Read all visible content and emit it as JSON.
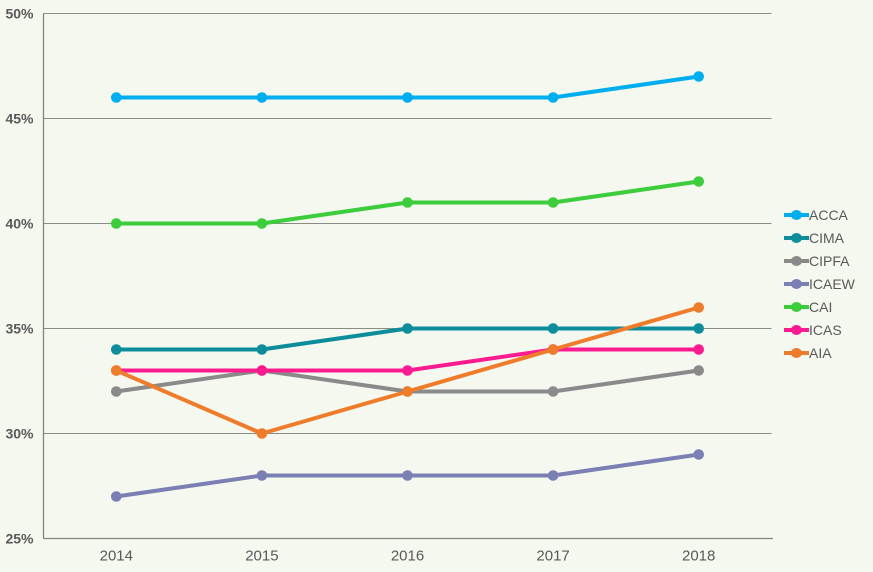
{
  "colors": {
    "background": "#f5f8ef",
    "gridline": "#8a8d84",
    "axis": "#82857c",
    "tick_text": "#595959",
    "legend_text": "#595959"
  },
  "chart_data": {
    "type": "line",
    "x": [
      "2014",
      "2015",
      "2016",
      "2017",
      "2018"
    ],
    "series": [
      {
        "name": "ACCA",
        "color": "#00aeef",
        "values": [
          46,
          46,
          46,
          46,
          47
        ]
      },
      {
        "name": "CIMA",
        "color": "#0d8d9c",
        "values": [
          34,
          34,
          35,
          35,
          35
        ]
      },
      {
        "name": "CIPFA",
        "color": "#8a8a8a",
        "values": [
          32,
          33,
          32,
          32,
          33
        ]
      },
      {
        "name": "ICAEW",
        "color": "#7b7fb3",
        "values": [
          27,
          28,
          28,
          28,
          29
        ]
      },
      {
        "name": "CAI",
        "color": "#3ccc3c",
        "values": [
          40,
          40,
          41,
          41,
          42
        ]
      },
      {
        "name": "ICAS",
        "color": "#fb1b90",
        "values": [
          33,
          33,
          33,
          34,
          34
        ]
      },
      {
        "name": "AIA",
        "color": "#ee7c2b",
        "values": [
          33,
          30,
          32,
          34,
          36
        ]
      }
    ],
    "title": "",
    "xlabel": "",
    "ylabel": "",
    "ylim": [
      25,
      50
    ],
    "ytick_step": 5,
    "ytick_labels": [
      "25%",
      "30%",
      "35%",
      "40%",
      "45%",
      "50%"
    ],
    "grid": true,
    "legend_position": "right",
    "legend_entries": [
      "ACCA",
      "CIMA",
      "CIPFA",
      "ICAEW",
      "CAI",
      "ICAS",
      "AIA"
    ]
  }
}
